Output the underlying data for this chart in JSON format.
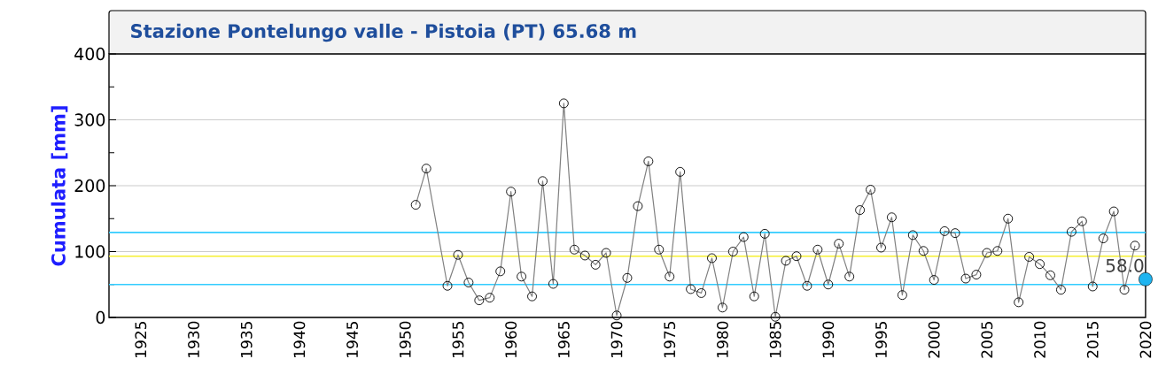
{
  "chart_data": {
    "type": "line",
    "title": "Stazione Pontelungo valle - Pistoia (PT) 65.68 m",
    "ylabel": "Cumulata [mm]",
    "xlim": [
      1922,
      2020
    ],
    "ylim": [
      0,
      400
    ],
    "xticks": [
      1925,
      1930,
      1935,
      1940,
      1945,
      1950,
      1955,
      1960,
      1965,
      1970,
      1975,
      1980,
      1985,
      1990,
      1995,
      2000,
      2005,
      2010,
      2015,
      2020
    ],
    "yticks": [
      0,
      {
        "value": 50,
        "label": null
      },
      100,
      {
        "value": 150,
        "label": null
      },
      200,
      {
        "value": 250,
        "label": null
      },
      300,
      {
        "value": 350,
        "label": null
      },
      400
    ],
    "grid": "y",
    "marker": "circle",
    "line_style": "solid",
    "series": [
      {
        "color": "#808080",
        "x": [
          1951,
          1952,
          1954,
          1955,
          1956,
          1957,
          1958,
          1959,
          1960,
          1961,
          1962,
          1963,
          1964,
          1965,
          1966,
          1967,
          1968,
          1969,
          1970,
          1971,
          1972,
          1973,
          1974,
          1975,
          1976,
          1977,
          1978,
          1979,
          1980,
          1981,
          1982,
          1983,
          1984,
          1985,
          1986,
          1987,
          1988,
          1989,
          1990,
          1991,
          1992,
          1993,
          1994,
          1995,
          1996,
          1997,
          1998,
          1999,
          2000,
          2001,
          2002,
          2003,
          2004,
          2005,
          2006,
          2007,
          2008,
          2009,
          2010,
          2011,
          2012,
          2013,
          2014,
          2015,
          2016,
          2017,
          2018,
          2019
        ],
        "values": [
          171,
          226,
          48,
          95,
          53,
          26,
          30,
          70,
          191,
          62,
          32,
          207,
          51,
          325,
          103,
          94,
          80,
          98,
          3,
          60,
          169,
          237,
          103,
          62,
          221,
          43,
          37,
          90,
          15,
          100,
          122,
          32,
          127,
          1,
          86,
          93,
          48,
          103,
          50,
          112,
          62,
          163,
          194,
          106,
          152,
          34,
          125,
          101,
          57,
          131,
          128,
          59,
          65,
          98,
          101,
          150,
          23,
          92,
          81,
          64,
          42,
          130,
          146,
          47,
          120,
          161,
          42,
          109
        ]
      },
      {
        "type": "scatter",
        "color": "#1eb4f0",
        "x": [
          2020
        ],
        "values": [
          58
        ],
        "value_labels": [
          "58.0"
        ]
      }
    ],
    "ref_lines": [
      {
        "axis": "y",
        "value": 129,
        "color": "#33ccff"
      },
      {
        "axis": "y",
        "value": 93,
        "color": "#f5f032"
      },
      {
        "axis": "y",
        "value": 50,
        "color": "#33ccff"
      }
    ]
  }
}
